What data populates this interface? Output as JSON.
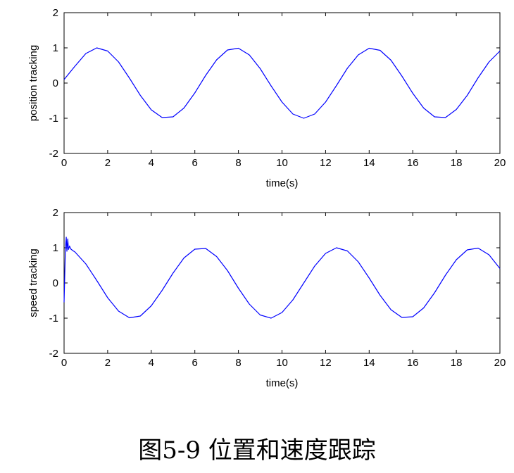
{
  "caption": "图5-9 位置和速度跟踪",
  "chart_data": [
    {
      "type": "line",
      "xlabel": "time(s)",
      "ylabel": "position tracking",
      "xlim": [
        0,
        20
      ],
      "ylim": [
        -2,
        2
      ],
      "xticks": [
        "0",
        "2",
        "4",
        "6",
        "8",
        "10",
        "12",
        "14",
        "16",
        "18",
        "20"
      ],
      "yticks": [
        "-2",
        "-1",
        "0",
        "1",
        "2"
      ],
      "grid": false,
      "series": [
        {
          "color": "#0000ff",
          "x": [
            0,
            0.5,
            1,
            1.5,
            2,
            2.5,
            3,
            3.5,
            4,
            4.5,
            5,
            5.5,
            6,
            6.5,
            7,
            7.5,
            8,
            8.5,
            9,
            9.5,
            10,
            10.5,
            11,
            11.5,
            12,
            12.5,
            13,
            13.5,
            14,
            14.5,
            15,
            15.5,
            16,
            16.5,
            17,
            17.5,
            18,
            18.5,
            19,
            19.5,
            20
          ],
          "y": [
            0.1,
            0.48,
            0.84,
            1.0,
            0.91,
            0.6,
            0.14,
            -0.35,
            -0.76,
            -0.98,
            -0.96,
            -0.71,
            -0.28,
            0.22,
            0.66,
            0.94,
            0.99,
            0.8,
            0.41,
            -0.08,
            -0.54,
            -0.88,
            -1.0,
            -0.88,
            -0.54,
            -0.07,
            0.42,
            0.8,
            0.99,
            0.93,
            0.65,
            0.2,
            -0.29,
            -0.71,
            -0.96,
            -0.98,
            -0.75,
            -0.35,
            0.15,
            0.6,
            0.91
          ]
        }
      ]
    },
    {
      "type": "line",
      "xlabel": "time(s)",
      "ylabel": "speed tracking",
      "xlim": [
        0,
        20
      ],
      "ylim": [
        -2,
        2
      ],
      "xticks": [
        "0",
        "2",
        "4",
        "6",
        "8",
        "10",
        "12",
        "14",
        "16",
        "18",
        "20"
      ],
      "yticks": [
        "-2",
        "-1",
        "0",
        "1",
        "2"
      ],
      "grid": false,
      "series": [
        {
          "color": "#0000ff",
          "x": [
            0,
            0.03,
            0.06,
            0.1,
            0.13,
            0.17,
            0.2,
            0.25,
            0.3,
            0.4,
            0.5,
            1,
            1.5,
            2,
            2.5,
            3,
            3.5,
            4,
            4.5,
            5,
            5.5,
            6,
            6.5,
            7,
            7.5,
            8,
            8.5,
            9,
            9.5,
            10,
            10.5,
            11,
            11.5,
            12,
            12.5,
            13,
            13.5,
            14,
            14.5,
            15,
            15.5,
            16,
            16.5,
            17,
            17.5,
            18,
            18.5,
            19,
            19.5,
            20
          ],
          "y": [
            -0.55,
            0.2,
            0.95,
            1.3,
            0.9,
            1.25,
            0.95,
            1.05,
            0.97,
            0.92,
            0.88,
            0.54,
            0.07,
            -0.42,
            -0.8,
            -0.99,
            -0.94,
            -0.65,
            -0.21,
            0.28,
            0.71,
            0.96,
            0.98,
            0.75,
            0.35,
            -0.15,
            -0.6,
            -0.91,
            -1.0,
            -0.84,
            -0.48,
            0.0,
            0.48,
            0.84,
            1.0,
            0.91,
            0.6,
            0.14,
            -0.35,
            -0.76,
            -0.98,
            -0.96,
            -0.71,
            -0.28,
            0.22,
            0.66,
            0.94,
            0.99,
            0.8,
            0.41
          ]
        }
      ]
    }
  ]
}
